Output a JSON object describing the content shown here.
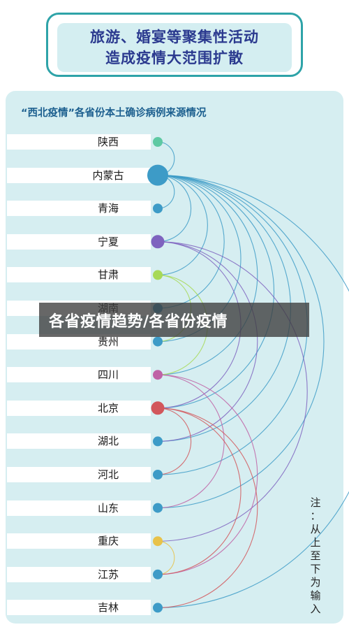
{
  "header": {
    "title_line1": "旅游、婚宴等聚集性活动",
    "title_line2": "造成疫情大范围扩散"
  },
  "diagram": {
    "subtitle": "“西北疫情”各省份本土确诊病例来源情况",
    "provinces": [
      {
        "name": "陕西",
        "color": "#5ec9a3",
        "size": "small"
      },
      {
        "name": "内蒙古",
        "color": "#3d9bc7",
        "size": "large"
      },
      {
        "name": "青海",
        "color": "#3d9bc7",
        "size": "small"
      },
      {
        "name": "宁夏",
        "color": "#7e63bf",
        "size": "medium"
      },
      {
        "name": "甘肃",
        "color": "#a7d957",
        "size": "small"
      },
      {
        "name": "湖南",
        "color": "#3d9bc7",
        "size": "small"
      },
      {
        "name": "贵州",
        "color": "#3d9bc7",
        "size": "small"
      },
      {
        "name": "四川",
        "color": "#bf62a6",
        "size": "small"
      },
      {
        "name": "北京",
        "color": "#d2575c",
        "size": "medium"
      },
      {
        "name": "湖北",
        "color": "#3d9bc7",
        "size": "small"
      },
      {
        "name": "河北",
        "color": "#3d9bc7",
        "size": "small"
      },
      {
        "name": "山东",
        "color": "#3d9bc7",
        "size": "small"
      },
      {
        "name": "重庆",
        "color": "#e8c24a",
        "size": "small"
      },
      {
        "name": "江苏",
        "color": "#3d9bc7",
        "size": "small"
      },
      {
        "name": "吉林",
        "color": "#3d9bc7",
        "size": "small"
      }
    ],
    "links": [
      {
        "from": "内蒙古",
        "to": "陕西",
        "color": "#3d9bc7"
      },
      {
        "from": "内蒙古",
        "to": "青海",
        "color": "#3d9bc7"
      },
      {
        "from": "内蒙古",
        "to": "宁夏",
        "color": "#3d9bc7"
      },
      {
        "from": "内蒙古",
        "to": "甘肃",
        "color": "#3d9bc7"
      },
      {
        "from": "内蒙古",
        "to": "湖南",
        "color": "#3d9bc7"
      },
      {
        "from": "内蒙古",
        "to": "贵州",
        "color": "#3d9bc7"
      },
      {
        "from": "内蒙古",
        "to": "四川",
        "color": "#3d9bc7"
      },
      {
        "from": "内蒙古",
        "to": "北京",
        "color": "#3d9bc7"
      },
      {
        "from": "内蒙古",
        "to": "湖北",
        "color": "#3d9bc7"
      },
      {
        "from": "内蒙古",
        "to": "河北",
        "color": "#3d9bc7"
      },
      {
        "from": "内蒙古",
        "to": "山东",
        "color": "#3d9bc7"
      },
      {
        "from": "内蒙古",
        "to": "吉林",
        "color": "#3d9bc7"
      },
      {
        "from": "宁夏",
        "to": "北京",
        "color": "#7e63bf"
      },
      {
        "from": "宁夏",
        "to": "湖北",
        "color": "#7e63bf"
      },
      {
        "from": "宁夏",
        "to": "重庆",
        "color": "#7e63bf"
      },
      {
        "from": "甘肃",
        "to": "四川",
        "color": "#a7d957"
      },
      {
        "from": "甘肃",
        "to": "贵州",
        "color": "#a7d957"
      },
      {
        "from": "四川",
        "to": "山东",
        "color": "#bf62a6"
      },
      {
        "from": "四川",
        "to": "江苏",
        "color": "#bf62a6"
      },
      {
        "from": "北京",
        "to": "河北",
        "color": "#d2575c"
      },
      {
        "from": "北京",
        "to": "江苏",
        "color": "#d2575c"
      },
      {
        "from": "北京",
        "to": "吉林",
        "color": "#d2575c"
      },
      {
        "from": "重庆",
        "to": "江苏",
        "color": "#e8c24a"
      }
    ],
    "note_chars": [
      "注",
      "：",
      "从",
      "上",
      "至",
      "下",
      "为",
      "输",
      "入"
    ]
  },
  "overlay": {
    "banner_text": "各省疫情趋势/各省份疫情"
  }
}
